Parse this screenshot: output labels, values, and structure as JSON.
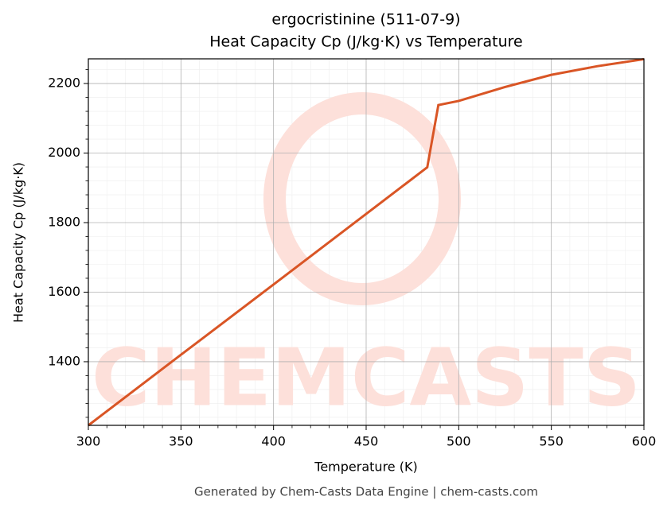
{
  "chart_data": {
    "type": "line",
    "title": "ergocristinine (511-07-9)",
    "subtitle": "Heat Capacity Cp (J/kg·K) vs Temperature",
    "x_label": "Temperature (K)",
    "y_label": "Heat Capacity Cp (J/kg·K)",
    "footer": "Generated by Chem-Casts Data Engine | chem-casts.com",
    "watermark": "CHEMCASTS",
    "x": [
      300,
      350,
      400,
      450,
      483,
      489,
      500,
      525,
      550,
      575,
      600
    ],
    "series": [
      {
        "name": "Cp",
        "color": "#d95525",
        "values": [
          1217,
          1420,
          1622,
          1825,
          1959,
          2138,
          2150,
          2190,
          2225,
          2250,
          2270
        ]
      }
    ],
    "xlim": [
      300,
      600
    ],
    "ylim": [
      1217,
      2271
    ],
    "xticks": [
      300,
      350,
      400,
      450,
      500,
      550,
      600
    ],
    "yticks": [
      1400,
      1600,
      1800,
      2000,
      2200
    ],
    "xminorticks": [
      310,
      320,
      330,
      340,
      360,
      370,
      380,
      390,
      410,
      420,
      430,
      440,
      460,
      470,
      480,
      490,
      510,
      520,
      530,
      540,
      560,
      570,
      580,
      590
    ],
    "yminorticks": [
      1240,
      1280,
      1320,
      1360,
      1440,
      1480,
      1520,
      1560,
      1640,
      1680,
      1720,
      1760,
      1840,
      1880,
      1920,
      1960,
      2040,
      2080,
      2120,
      2160,
      2240
    ],
    "grid": true
  }
}
